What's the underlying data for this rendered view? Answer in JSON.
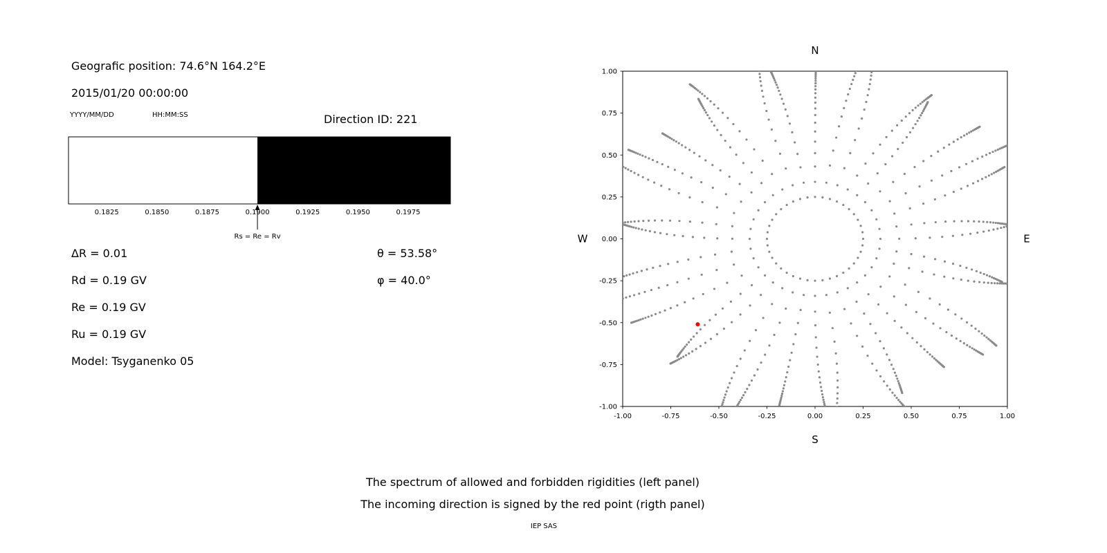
{
  "left_panel": {
    "geo_position": "Geografic position: 74.6°N 164.2°E",
    "datetime": "2015/01/20 00:00:00",
    "date_format": "YYYY/MM/DD",
    "time_format": "HH:MM:SS",
    "direction_id": "Direction ID: 221",
    "params_left": [
      "ΔR = 0.01",
      "Rd = 0.19 GV",
      "Re = 0.19 GV",
      "Ru = 0.19 GV",
      "Model: Tsyganenko 05"
    ],
    "params_right": [
      "θ = 53.58°",
      "φ = 40.0°"
    ]
  },
  "captions": {
    "line1": "The spectrum of allowed and forbidden rigidities (left panel)",
    "line2": "The incoming direction is signed by the red point (rigth panel)",
    "credit": "IEP SAS"
  },
  "chart_data": [
    {
      "type": "area",
      "title": "rigidity spectrum",
      "x_range": [
        0.1806,
        0.1996
      ],
      "x_ticks": [
        "0.1825",
        "0.1850",
        "0.1875",
        "0.1900",
        "0.1925",
        "0.1950",
        "0.1975"
      ],
      "boundary_value": 0.19,
      "regions": [
        {
          "from": 0.1806,
          "to": 0.19,
          "fill": "#ffffff",
          "meaning": "allowed rigidities"
        },
        {
          "from": 0.19,
          "to": 0.1996,
          "fill": "#000000",
          "meaning": "forbidden rigidities"
        }
      ],
      "annotation": {
        "value": 0.19,
        "label": "Rs = Re = Rv"
      },
      "border_color": "#000000"
    },
    {
      "type": "scatter",
      "title": "incoming direction map",
      "xlim": [
        -1,
        1
      ],
      "ylim": [
        -1,
        1
      ],
      "x_ticks": [
        "-1.00",
        "-0.75",
        "-0.50",
        "-0.25",
        "0.00",
        "0.25",
        "0.50",
        "0.75",
        "1.00"
      ],
      "y_ticks": [
        "1.00",
        "0.75",
        "0.50",
        "0.25",
        "0.00",
        "-0.25",
        "-0.50",
        "-0.75",
        "-1.00"
      ],
      "compass": {
        "top": "N",
        "bottom": "S",
        "left": "W",
        "right": "E"
      },
      "dot_color": "#8a8a8a",
      "red_point": {
        "x": -0.61,
        "y": -0.51,
        "color": "#ff0000"
      },
      "pattern": {
        "ring": {
          "radius": 0.25,
          "n_dots": 40
        },
        "spokes": {
          "count": 36,
          "r_start": 0.34,
          "decay": 0.87,
          "dots_per_spoke": 24,
          "rmax_base": 1.03,
          "rmax_amp": 0.15
        }
      }
    }
  ]
}
